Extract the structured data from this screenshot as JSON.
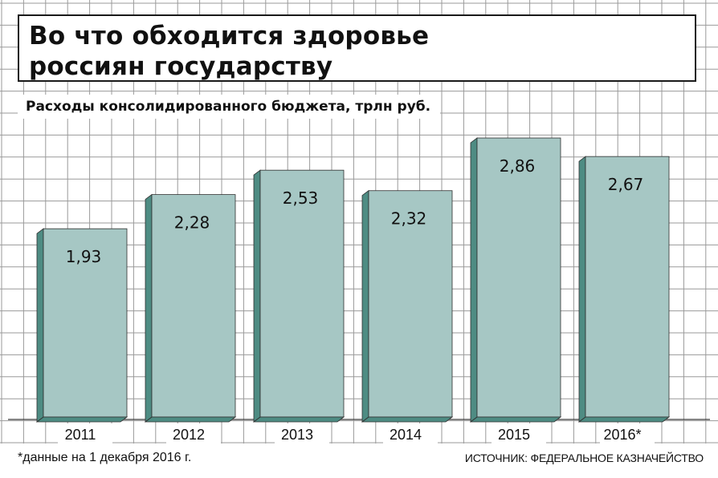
{
  "title_lines": [
    "Во что обходится здоровье",
    "россиян государству"
  ],
  "chart_data": {
    "type": "bar",
    "title": "Во что обходится здоровье россиян государству",
    "subtitle": "Расходы консолидированного бюджета, трлн руб.",
    "categories": [
      "2011",
      "2012",
      "2013",
      "2014",
      "2015",
      "2016*"
    ],
    "values": [
      1.93,
      2.28,
      2.53,
      2.32,
      2.86,
      2.67
    ],
    "value_labels": [
      "1,93",
      "2,28",
      "2,53",
      "2,32",
      "2,86",
      "2,67"
    ],
    "ylim": [
      0,
      3
    ],
    "grid": true,
    "legend": "none",
    "colors": {
      "bar_face": "#a6c7c4",
      "bar_side": "#4e8c83",
      "grid": "#9a9a9a",
      "bar_outline": "#2f2f2f"
    }
  },
  "footnote": "*данные на 1 декабря 2016 г.",
  "source": "ИСТОЧНИК: ФЕДЕРАЛЬНОЕ КАЗНАЧЕЙСТВО"
}
